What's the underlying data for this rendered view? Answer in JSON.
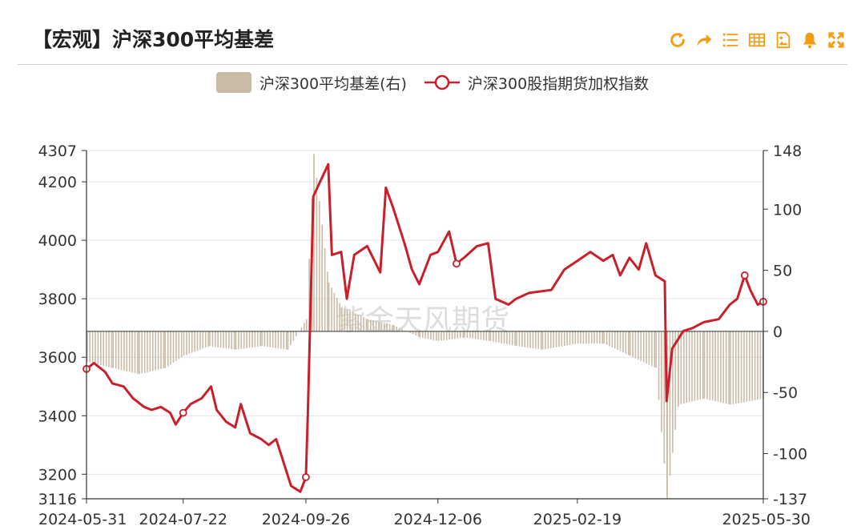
{
  "header": {
    "title": "【宏观】沪深300平均基差"
  },
  "toolbar": {
    "icons": [
      "refresh-icon",
      "share-icon",
      "list-icon",
      "table-icon",
      "image-icon",
      "bell-icon",
      "expand-icon"
    ],
    "accent_color": "#f39c12"
  },
  "watermark": "紫金天风期货",
  "chart_data": {
    "type": "line",
    "title": "【宏观】沪深300平均基差",
    "legend_position": "top-center",
    "grid": true,
    "x_tick_labels": [
      "2024-05-31",
      "2024-07-22",
      "2024-09-26",
      "2024-12-06",
      "2025-02-19",
      "2025-05-30"
    ],
    "y_left": {
      "ticks": [
        3116,
        3200,
        3400,
        3600,
        3800,
        4000,
        4200,
        4307
      ],
      "range": [
        3116,
        4307
      ]
    },
    "y_right": {
      "ticks": [
        -137,
        -100,
        -50,
        0,
        50,
        100,
        148
      ],
      "range": [
        -137,
        148
      ]
    },
    "series": [
      {
        "name": "沪深300平均基差(右)",
        "kind": "bar",
        "axis": "right",
        "color": "#c9bba6",
        "points": [
          [
            "2024-05-31",
            -25
          ],
          [
            "2024-06-14",
            -30
          ],
          [
            "2024-06-28",
            -35
          ],
          [
            "2024-07-12",
            -30
          ],
          [
            "2024-07-22",
            -20
          ],
          [
            "2024-08-05",
            -12
          ],
          [
            "2024-08-19",
            -15
          ],
          [
            "2024-09-02",
            -12
          ],
          [
            "2024-09-16",
            -15
          ],
          [
            "2024-09-26",
            10
          ],
          [
            "2024-09-30",
            145
          ],
          [
            "2024-10-08",
            40
          ],
          [
            "2024-10-15",
            20
          ],
          [
            "2024-10-29",
            10
          ],
          [
            "2024-11-12",
            5
          ],
          [
            "2024-11-26",
            -5
          ],
          [
            "2024-12-06",
            -8
          ],
          [
            "2024-12-20",
            -5
          ],
          [
            "2025-01-03",
            -8
          ],
          [
            "2025-01-17",
            -12
          ],
          [
            "2025-01-31",
            -15
          ],
          [
            "2025-02-19",
            -10
          ],
          [
            "2025-03-05",
            -10
          ],
          [
            "2025-03-19",
            -20
          ],
          [
            "2025-04-02",
            -30
          ],
          [
            "2025-04-08",
            -137
          ],
          [
            "2025-04-14",
            -60
          ],
          [
            "2025-04-28",
            -55
          ],
          [
            "2025-05-12",
            -60
          ],
          [
            "2025-05-30",
            -55
          ]
        ]
      },
      {
        "name": "沪深300股指期货加权指数",
        "kind": "line",
        "axis": "left",
        "color": "#c8202a",
        "points": [
          [
            "2024-05-31",
            3560
          ],
          [
            "2024-06-04",
            3580
          ],
          [
            "2024-06-10",
            3550
          ],
          [
            "2024-06-14",
            3510
          ],
          [
            "2024-06-20",
            3500
          ],
          [
            "2024-06-25",
            3460
          ],
          [
            "2024-07-01",
            3430
          ],
          [
            "2024-07-05",
            3420
          ],
          [
            "2024-07-10",
            3430
          ],
          [
            "2024-07-15",
            3410
          ],
          [
            "2024-07-18",
            3370
          ],
          [
            "2024-07-22",
            3410
          ],
          [
            "2024-07-26",
            3440
          ],
          [
            "2024-08-01",
            3460
          ],
          [
            "2024-08-06",
            3500
          ],
          [
            "2024-08-09",
            3420
          ],
          [
            "2024-08-14",
            3380
          ],
          [
            "2024-08-19",
            3360
          ],
          [
            "2024-08-22",
            3440
          ],
          [
            "2024-08-27",
            3340
          ],
          [
            "2024-09-02",
            3320
          ],
          [
            "2024-09-06",
            3300
          ],
          [
            "2024-09-10",
            3320
          ],
          [
            "2024-09-13",
            3260
          ],
          [
            "2024-09-18",
            3160
          ],
          [
            "2024-09-23",
            3140
          ],
          [
            "2024-09-26",
            3190
          ],
          [
            "2024-09-27",
            3400
          ],
          [
            "2024-09-30",
            4150
          ],
          [
            "2024-10-08",
            4260
          ],
          [
            "2024-10-10",
            3950
          ],
          [
            "2024-10-15",
            3960
          ],
          [
            "2024-10-18",
            3800
          ],
          [
            "2024-10-22",
            3950
          ],
          [
            "2024-10-29",
            3980
          ],
          [
            "2024-11-05",
            3890
          ],
          [
            "2024-11-08",
            4180
          ],
          [
            "2024-11-12",
            4110
          ],
          [
            "2024-11-18",
            3990
          ],
          [
            "2024-11-22",
            3900
          ],
          [
            "2024-11-26",
            3850
          ],
          [
            "2024-12-02",
            3950
          ],
          [
            "2024-12-06",
            3960
          ],
          [
            "2024-12-12",
            4030
          ],
          [
            "2024-12-16",
            3920
          ],
          [
            "2024-12-20",
            3940
          ],
          [
            "2024-12-27",
            3980
          ],
          [
            "2025-01-02",
            3990
          ],
          [
            "2025-01-06",
            3800
          ],
          [
            "2025-01-13",
            3780
          ],
          [
            "2025-01-17",
            3800
          ],
          [
            "2025-01-24",
            3820
          ],
          [
            "2025-02-05",
            3830
          ],
          [
            "2025-02-12",
            3900
          ],
          [
            "2025-02-19",
            3930
          ],
          [
            "2025-02-26",
            3960
          ],
          [
            "2025-03-05",
            3930
          ],
          [
            "2025-03-10",
            3950
          ],
          [
            "2025-03-14",
            3880
          ],
          [
            "2025-03-19",
            3940
          ],
          [
            "2025-03-24",
            3900
          ],
          [
            "2025-03-28",
            3990
          ],
          [
            "2025-04-02",
            3880
          ],
          [
            "2025-04-07",
            3860
          ],
          [
            "2025-04-08",
            3450
          ],
          [
            "2025-04-11",
            3630
          ],
          [
            "2025-04-17",
            3690
          ],
          [
            "2025-04-22",
            3700
          ],
          [
            "2025-04-28",
            3720
          ],
          [
            "2025-05-06",
            3730
          ],
          [
            "2025-05-12",
            3780
          ],
          [
            "2025-05-16",
            3800
          ],
          [
            "2025-05-20",
            3880
          ],
          [
            "2025-05-23",
            3830
          ],
          [
            "2025-05-27",
            3780
          ],
          [
            "2025-05-30",
            3790
          ]
        ]
      }
    ]
  }
}
